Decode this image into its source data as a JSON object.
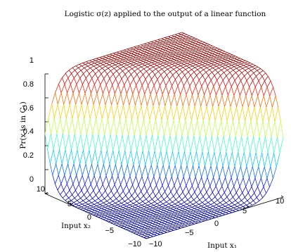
{
  "chart_data": {
    "type": "surface-mesh",
    "title": "Logistic σ(z) applied to the output of a linear function",
    "zlabel": "Pr(x is in C₁)",
    "x1label": "Input x₁",
    "x2label": "Input x₂",
    "x1_range": [
      -10,
      10
    ],
    "x2_range": [
      -10,
      10
    ],
    "z_range": [
      0,
      1
    ],
    "x1_ticks": [
      "−10",
      "−5",
      "0",
      "5",
      "10"
    ],
    "x2_ticks": [
      "−10",
      "−5",
      "0",
      "5",
      "10"
    ],
    "z_ticks": [
      "0",
      "0.2",
      "0.4",
      "0.6",
      "0.8",
      "1"
    ],
    "function": "z = 1 / (1 + exp(-(x1 + x2)))",
    "colormap": "jet"
  }
}
